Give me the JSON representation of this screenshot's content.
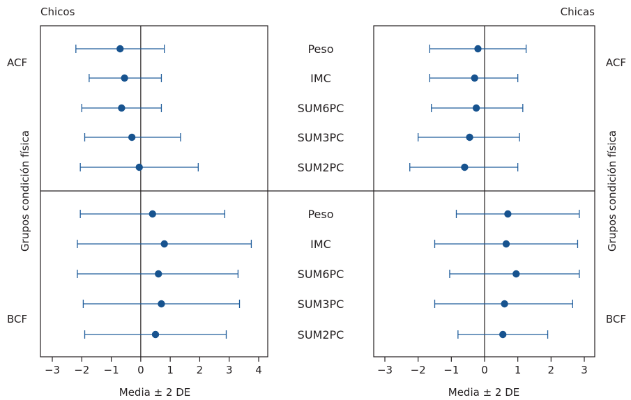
{
  "chart_data": [
    {
      "type": "errorbar",
      "title": "Chicos",
      "xlabel": "Media ± 2 DE",
      "ylabel": "Grupos condición física",
      "xlim": [
        -3.4,
        4.3
      ],
      "xticks": [
        "−3",
        "−2",
        "−1",
        "0",
        "1",
        "2",
        "3",
        "4"
      ],
      "groups": [
        {
          "label": "ACF",
          "series": [
            {
              "name": "Peso",
              "mean": -0.7,
              "lo": -2.2,
              "hi": 0.8
            },
            {
              "name": "IMC",
              "mean": -0.55,
              "lo": -1.75,
              "hi": 0.7
            },
            {
              "name": "SUM6PC",
              "mean": -0.65,
              "lo": -2.0,
              "hi": 0.7
            },
            {
              "name": "SUM3PC",
              "mean": -0.3,
              "lo": -1.9,
              "hi": 1.35
            },
            {
              "name": "SUM2PC",
              "mean": -0.05,
              "lo": -2.05,
              "hi": 1.95
            }
          ]
        },
        {
          "label": "BCF",
          "series": [
            {
              "name": "Peso",
              "mean": 0.4,
              "lo": -2.05,
              "hi": 2.85
            },
            {
              "name": "IMC",
              "mean": 0.8,
              "lo": -2.15,
              "hi": 3.75
            },
            {
              "name": "SUM6PC",
              "mean": 0.6,
              "lo": -2.15,
              "hi": 3.3
            },
            {
              "name": "SUM3PC",
              "mean": 0.7,
              "lo": -1.95,
              "hi": 3.35
            },
            {
              "name": "SUM2PC",
              "mean": 0.5,
              "lo": -1.9,
              "hi": 2.9
            }
          ]
        }
      ]
    },
    {
      "type": "errorbar",
      "title": "Chicas",
      "xlabel": "Media ± 2 DE",
      "ylabel": "Grupos condición física",
      "xlim": [
        -3.4,
        3.4
      ],
      "xticks": [
        "−3",
        "−2",
        "−1",
        "0",
        "1",
        "2",
        "3"
      ],
      "groups": [
        {
          "label": "ACF",
          "series": [
            {
              "name": "Peso",
              "mean": -0.2,
              "lo": -1.65,
              "hi": 1.25
            },
            {
              "name": "IMC",
              "mean": -0.3,
              "lo": -1.65,
              "hi": 1.0
            },
            {
              "name": "SUM6PC",
              "mean": -0.25,
              "lo": -1.6,
              "hi": 1.15
            },
            {
              "name": "SUM3PC",
              "mean": -0.45,
              "lo": -2.0,
              "hi": 1.05
            },
            {
              "name": "SUM2PC",
              "mean": -0.6,
              "lo": -2.25,
              "hi": 1.0
            }
          ]
        },
        {
          "label": "BCF",
          "series": [
            {
              "name": "Peso",
              "mean": 0.7,
              "lo": -0.85,
              "hi": 2.85
            },
            {
              "name": "IMC",
              "mean": 0.65,
              "lo": -1.5,
              "hi": 2.8
            },
            {
              "name": "SUM6PC",
              "mean": 0.95,
              "lo": -1.05,
              "hi": 2.85
            },
            {
              "name": "SUM3PC",
              "mean": 0.6,
              "lo": -1.5,
              "hi": 2.65
            },
            {
              "name": "SUM2PC",
              "mean": 0.55,
              "lo": -0.8,
              "hi": 1.9
            }
          ]
        }
      ]
    }
  ],
  "variables": [
    "Peso",
    "IMC",
    "SUM6PC",
    "SUM3PC",
    "SUM2PC"
  ],
  "colors": {
    "series": "#1e5c9b",
    "marker": "#17538f",
    "axis": "#231f20"
  }
}
